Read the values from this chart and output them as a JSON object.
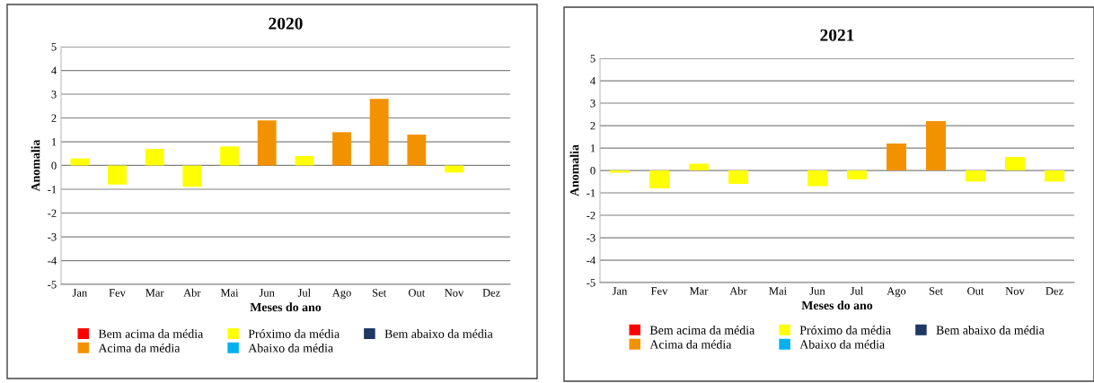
{
  "chart_data": [
    {
      "type": "bar",
      "title": "2020",
      "xlabel": "Meses do ano",
      "ylabel": "Anomalia",
      "stacked": true,
      "grid": "y",
      "legend": "bottom",
      "categories": [
        "Jan",
        "Fev",
        "Mar",
        "Abr",
        "Mai",
        "Jun",
        "Jul",
        "Ago",
        "Set",
        "Out",
        "Nov",
        "Dez"
      ],
      "ylim": [
        -5,
        5
      ],
      "yticks": [
        -5,
        -4,
        -3,
        -2,
        -1,
        0,
        1,
        2,
        3,
        4,
        5
      ],
      "series": [
        {
          "name": "Bem acima da média",
          "color": "#ff0000",
          "values": [
            null,
            null,
            null,
            null,
            null,
            null,
            null,
            null,
            null,
            null,
            null,
            null
          ]
        },
        {
          "name": "Acima da média",
          "color": "#f39200",
          "values": [
            null,
            null,
            null,
            null,
            null,
            1.9,
            null,
            1.4,
            2.8,
            1.3,
            null,
            null
          ]
        },
        {
          "name": "Próximo da média",
          "color": "#ffff00",
          "values": [
            0.3,
            -0.8,
            0.7,
            -0.9,
            0.8,
            null,
            0.4,
            null,
            null,
            null,
            -0.3,
            null
          ]
        },
        {
          "name": "Abaixo da média",
          "color": "#00b0f0",
          "values": [
            null,
            null,
            null,
            null,
            null,
            null,
            null,
            null,
            null,
            null,
            null,
            null
          ]
        },
        {
          "name": "Bem abaixo da média",
          "color": "#1f3864",
          "values": [
            null,
            null,
            null,
            null,
            null,
            null,
            null,
            null,
            null,
            null,
            null,
            null
          ]
        }
      ]
    },
    {
      "type": "bar",
      "title": "2021",
      "xlabel": "Meses do ano",
      "ylabel": "Anomalia",
      "stacked": true,
      "grid": "y",
      "legend": "bottom",
      "categories": [
        "Jan",
        "Fev",
        "Mar",
        "Abr",
        "Mai",
        "Jun",
        "Jul",
        "Ago",
        "Set",
        "Out",
        "Nov",
        "Dez"
      ],
      "ylim": [
        -5,
        5
      ],
      "yticks": [
        -5,
        -4,
        -3,
        -2,
        -1,
        0,
        1,
        2,
        3,
        4,
        5
      ],
      "series": [
        {
          "name": "Bem acima da média",
          "color": "#ff0000",
          "values": [
            null,
            null,
            null,
            null,
            null,
            null,
            null,
            null,
            null,
            null,
            null,
            null
          ]
        },
        {
          "name": "Acima da média",
          "color": "#f39200",
          "values": [
            null,
            null,
            null,
            null,
            null,
            null,
            null,
            1.2,
            2.2,
            null,
            null,
            null
          ]
        },
        {
          "name": "Próximo da média",
          "color": "#ffff00",
          "values": [
            -0.1,
            -0.8,
            0.3,
            -0.6,
            null,
            -0.7,
            -0.4,
            null,
            null,
            -0.5,
            0.6,
            -0.5
          ]
        },
        {
          "name": "Abaixo da média",
          "color": "#00b0f0",
          "values": [
            null,
            null,
            null,
            null,
            null,
            null,
            null,
            null,
            null,
            null,
            null,
            null
          ]
        },
        {
          "name": "Bem abaixo da média",
          "color": "#1f3864",
          "values": [
            null,
            null,
            null,
            null,
            null,
            null,
            null,
            null,
            null,
            null,
            null,
            null
          ]
        }
      ]
    }
  ]
}
